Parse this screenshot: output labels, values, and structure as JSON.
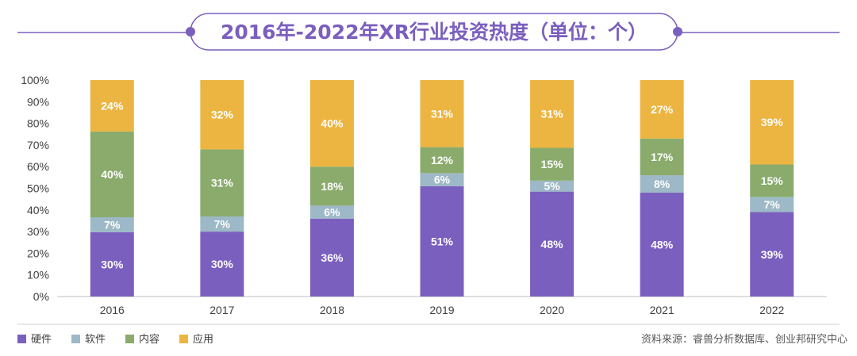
{
  "chart_data": {
    "type": "bar",
    "stacked": true,
    "title": "2016年-2022年XR行业投资热度（单位：个）",
    "categories": [
      "2016",
      "2017",
      "2018",
      "2019",
      "2020",
      "2021",
      "2022"
    ],
    "series": [
      {
        "name": "硬件",
        "values": [
          30,
          30,
          36,
          51,
          48,
          48,
          39
        ],
        "color": "#7b5fbf"
      },
      {
        "name": "软件",
        "values": [
          7,
          7,
          6,
          6,
          5,
          8,
          7
        ],
        "color": "#9db8c6"
      },
      {
        "name": "内容",
        "values": [
          40,
          31,
          18,
          12,
          15,
          17,
          15
        ],
        "color": "#8aab6c"
      },
      {
        "name": "应用",
        "values": [
          24,
          32,
          40,
          31,
          31,
          27,
          39
        ],
        "color": "#ecb541"
      }
    ],
    "y_ticks": [
      "0%",
      "10%",
      "20%",
      "30%",
      "40%",
      "50%",
      "60%",
      "70%",
      "80%",
      "90%",
      "100%"
    ],
    "ylim": [
      0,
      100
    ],
    "value_suffix": "%",
    "legend_position": "bottom-left",
    "grid": false
  },
  "source": "资料来源：睿兽分析数据库、创业邦研究中心",
  "colors": {
    "accent": "#7b5fbf",
    "title_text": "#7b5fbf",
    "axis_text": "#404040",
    "label_text": "#ffffff",
    "source_text": "#595959"
  }
}
